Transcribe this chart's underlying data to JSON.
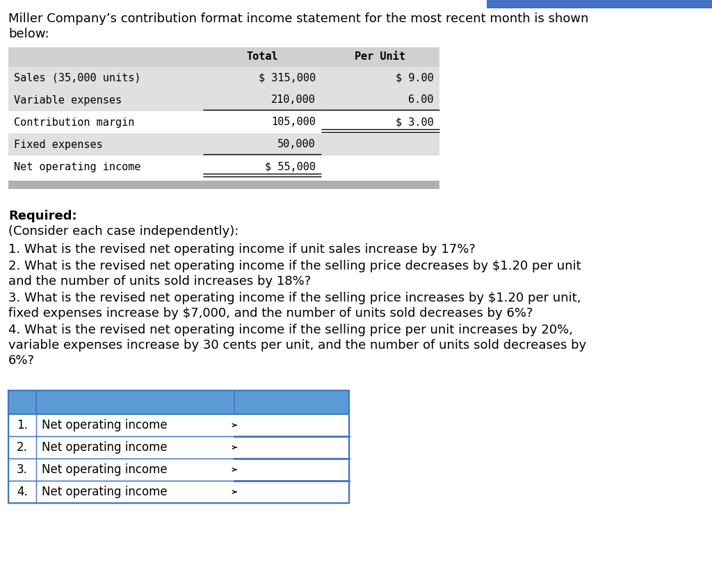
{
  "title_line1": "Miller Company’s contribution format income statement for the most recent month is shown",
  "title_line2": "below:",
  "bg_color": "#ffffff",
  "top_bar_color": "#4472c4",
  "table1": {
    "header_bg": "#d0d0d0",
    "row_bg_odd": "#e8e8e8",
    "row_bg_even": "#f5f5f5",
    "col_headers": [
      "Total",
      "Per Unit"
    ],
    "rows": [
      [
        "Sales (35,000 units)",
        "$ 315,000",
        "$ 9.00"
      ],
      [
        "Variable expenses",
        "210,000",
        "6.00"
      ],
      [
        "Contribution margin",
        "105,000",
        "$ 3.00"
      ],
      [
        "Fixed expenses",
        "50,000",
        ""
      ],
      [
        "Net operating income",
        "$ 55,000",
        ""
      ]
    ]
  },
  "required_text": "Required:",
  "consider_text": "(Consider each case independently):",
  "q1": "1. What is the revised net operating income if unit sales increase by 17%?",
  "q2a": "2. What is the revised net operating income if the selling price decreases by $1.20 per unit",
  "q2b": "and the number of units sold increases by 18%?",
  "q3a": "3. What is the revised net operating income if the selling price increases by $1.20 per unit,",
  "q3b": "fixed expenses increase by $7,000, and the number of units sold decreases by 6%?",
  "q4a": "4. What is the revised net operating income if the selling price per unit increases by 20%,",
  "q4b": "variable expenses increase by 30 cents per unit, and the number of units sold decreases by",
  "q4c": "6%?",
  "table2": {
    "header_bg": "#5b9bd5",
    "border_color": "#4472c4",
    "rows": [
      [
        "1.",
        "Net operating income"
      ],
      [
        "2.",
        "Net operating income"
      ],
      [
        "3.",
        "Net operating income"
      ],
      [
        "4.",
        "Net operating income"
      ]
    ]
  },
  "font_size_title": 13,
  "font_size_body": 13,
  "font_size_table1": 11,
  "font_size_table2": 12,
  "font_size_required": 13
}
